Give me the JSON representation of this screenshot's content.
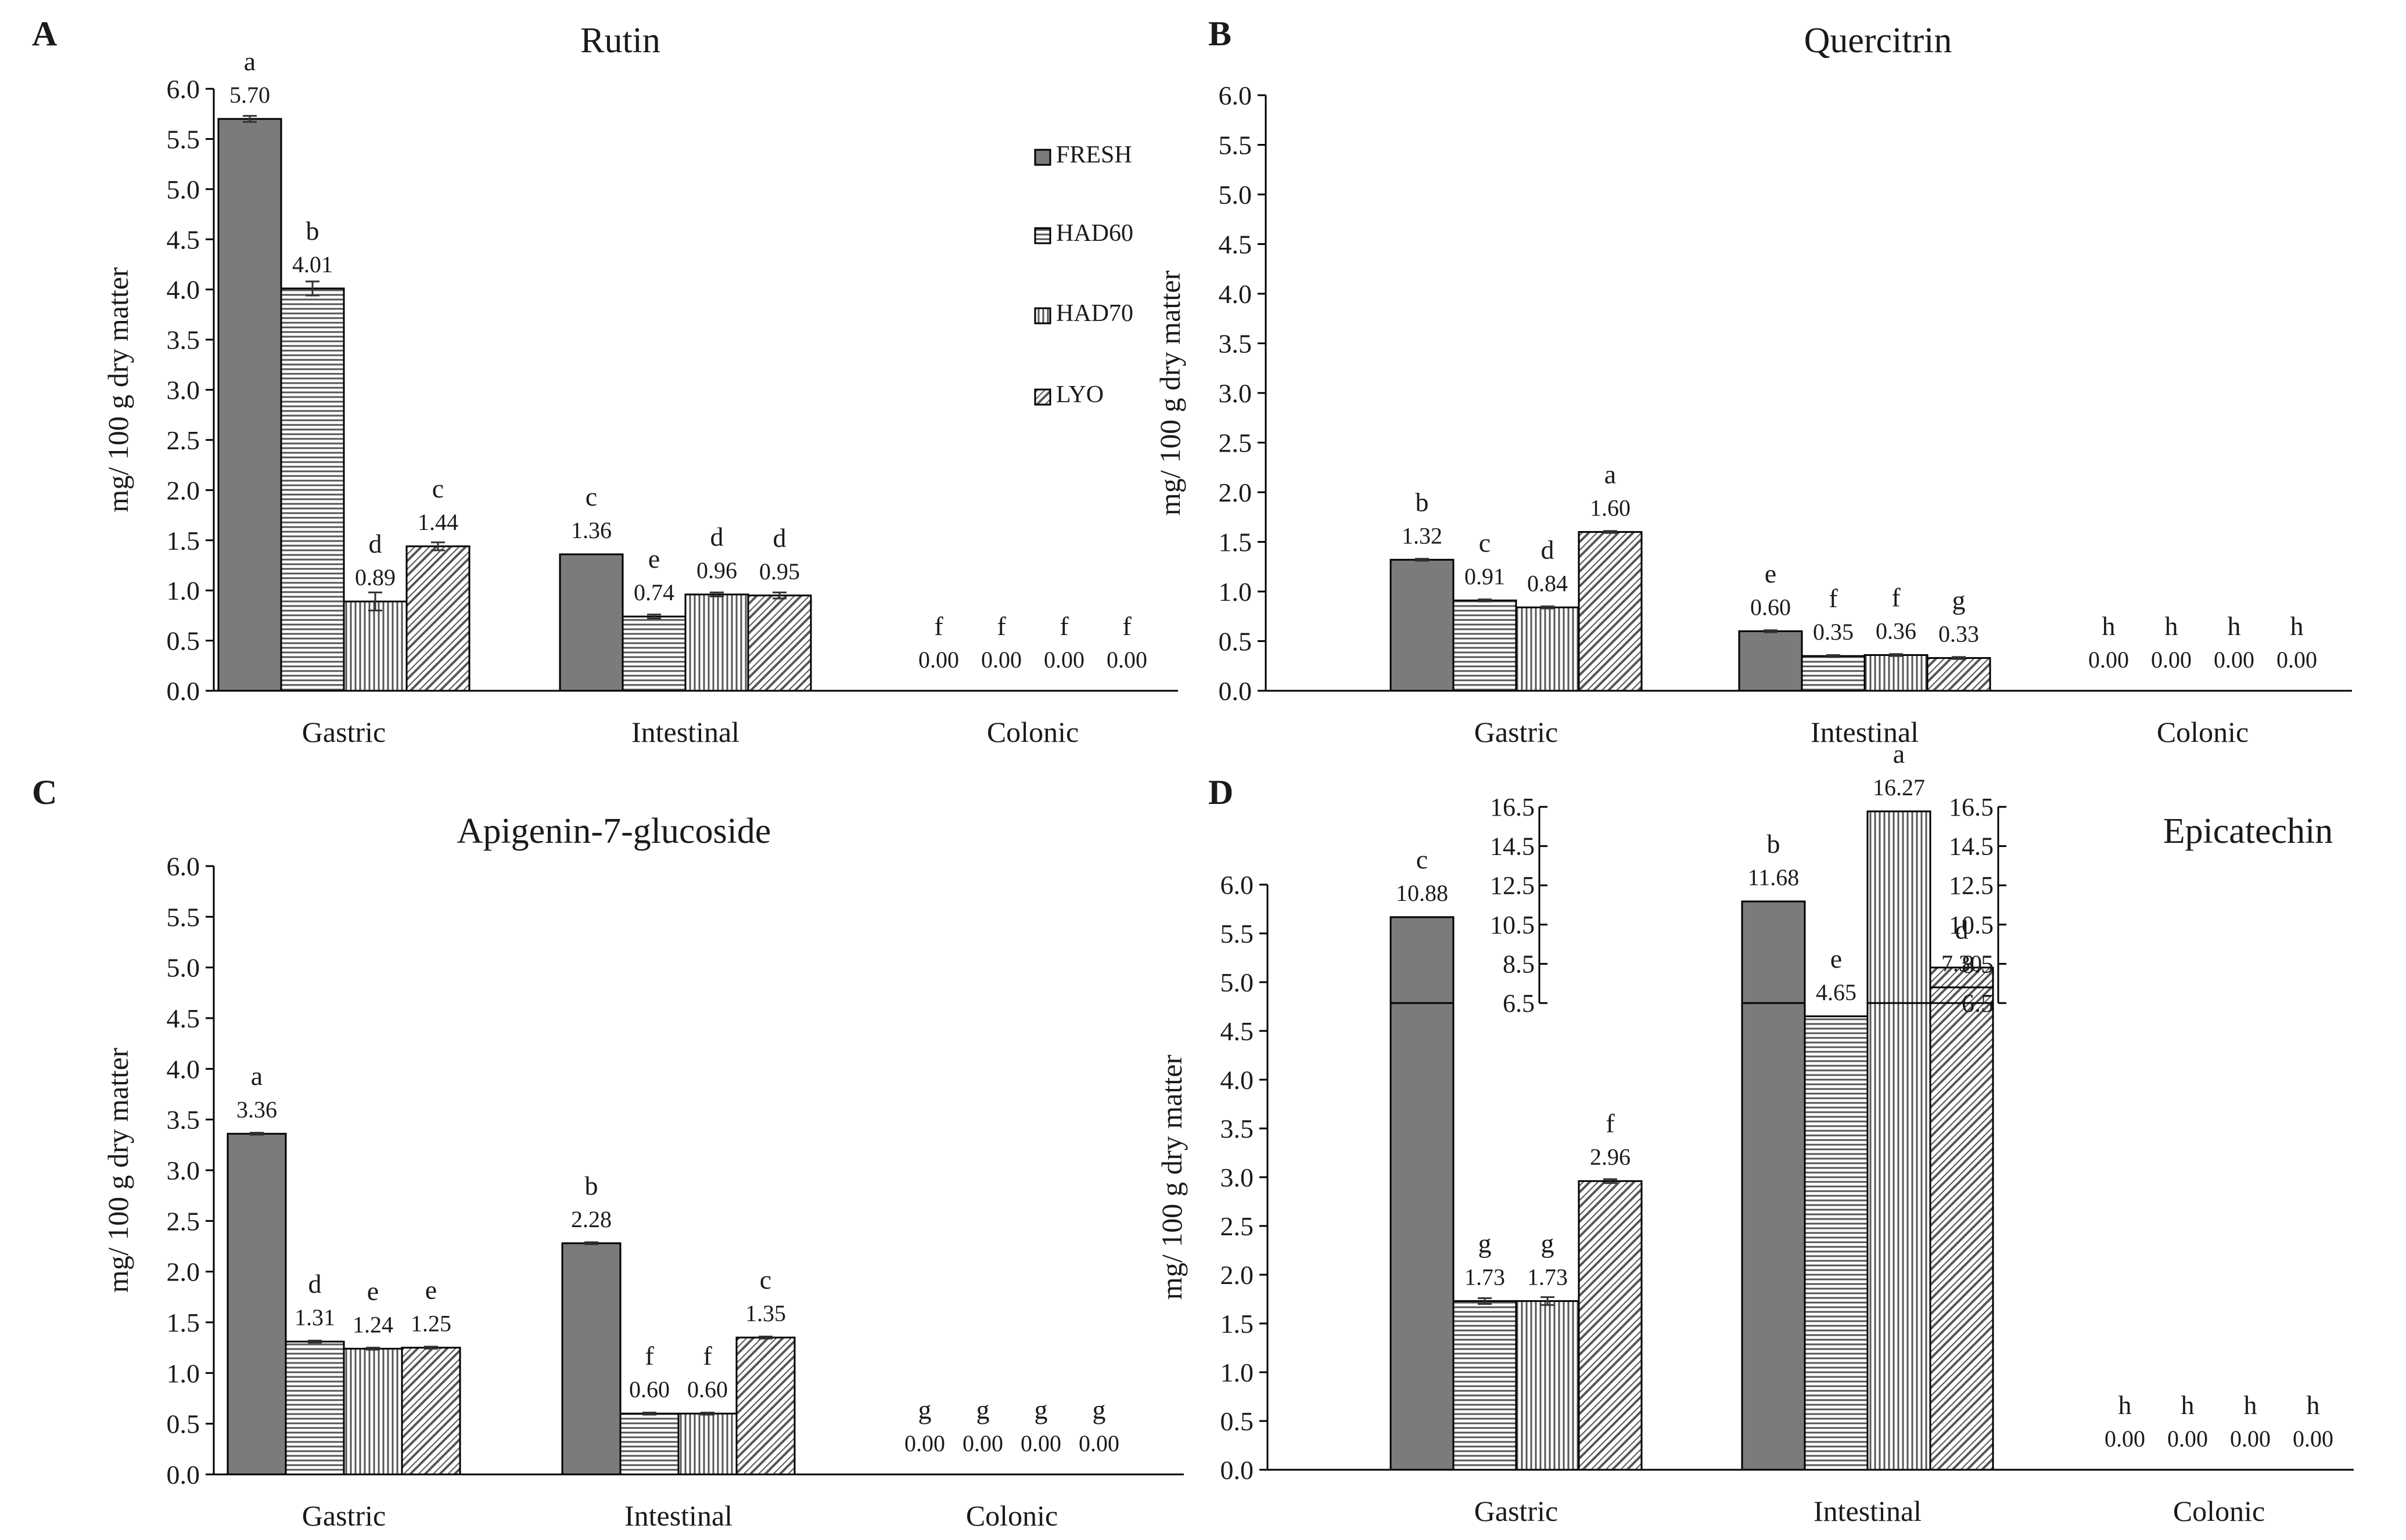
{
  "figure": {
    "legend": [
      {
        "key": "FRESH",
        "label": "FRESH",
        "pattern": "solid"
      },
      {
        "key": "HAD60",
        "label": "HAD60",
        "pattern": "hlines"
      },
      {
        "key": "HAD70",
        "label": "HAD70",
        "pattern": "vlines"
      },
      {
        "key": "LYO",
        "label": "LYO",
        "pattern": "diag"
      }
    ],
    "colors": {
      "fresh_fill": "#7b7b7b",
      "stroke": "#000000",
      "text": "#1a1a1a",
      "hatch": "#555555"
    }
  },
  "chart_data": [
    {
      "id": "A",
      "panel_label": "A",
      "type": "bar",
      "title": "Rutin",
      "ylabel": "mg/ 100 g dry matter",
      "xlabel": "",
      "ylim": [
        0,
        6.0
      ],
      "yticks": [
        "0.0",
        "0.5",
        "1.0",
        "1.5",
        "2.0",
        "2.5",
        "3.0",
        "3.5",
        "4.0",
        "4.5",
        "5.0",
        "5.5",
        "6.0"
      ],
      "categories": [
        "Gastric",
        "Intestinal",
        "Colonic"
      ],
      "series": [
        {
          "name": "FRESH",
          "values": [
            5.7,
            1.36,
            0.0
          ],
          "labels": [
            "5.70",
            "1.36",
            "0.00"
          ],
          "letters": [
            "a",
            "c",
            "f"
          ],
          "errors": [
            0.03,
            0.0,
            0.0
          ]
        },
        {
          "name": "HAD60",
          "values": [
            4.01,
            0.74,
            0.0
          ],
          "labels": [
            "4.01",
            "0.74",
            "0.00"
          ],
          "letters": [
            "b",
            "e",
            "f"
          ],
          "errors": [
            0.07,
            0.02,
            0.0
          ]
        },
        {
          "name": "HAD70",
          "values": [
            0.89,
            0.96,
            0.0
          ],
          "labels": [
            "0.89",
            "0.96",
            "0.00"
          ],
          "letters": [
            "d",
            "d",
            "f"
          ],
          "errors": [
            0.09,
            0.02,
            0.0
          ]
        },
        {
          "name": "LYO",
          "values": [
            1.44,
            0.95,
            0.0
          ],
          "labels": [
            "1.44",
            "0.95",
            "0.00"
          ],
          "letters": [
            "c",
            "d",
            "f"
          ],
          "errors": [
            0.04,
            0.03,
            0.0
          ]
        }
      ],
      "legend": "top-right"
    },
    {
      "id": "B",
      "panel_label": "B",
      "type": "bar",
      "title": "Quercitrin",
      "ylabel": "mg/ 100 g dry matter",
      "xlabel": "",
      "ylim": [
        0,
        6.0
      ],
      "yticks": [
        "0.0",
        "0.5",
        "1.0",
        "1.5",
        "2.0",
        "2.5",
        "3.0",
        "3.5",
        "4.0",
        "4.5",
        "5.0",
        "5.5",
        "6.0"
      ],
      "categories": [
        "Gastric",
        "Intestinal",
        "Colonic"
      ],
      "series": [
        {
          "name": "FRESH",
          "values": [
            1.32,
            0.6,
            0.0
          ],
          "labels": [
            "1.32",
            "0.60",
            "0.00"
          ],
          "letters": [
            "b",
            "e",
            "h"
          ],
          "errors": [
            0.01,
            0.01,
            0.0
          ]
        },
        {
          "name": "HAD60",
          "values": [
            0.91,
            0.35,
            0.0
          ],
          "labels": [
            "0.91",
            "0.35",
            "0.00"
          ],
          "letters": [
            "c",
            "f",
            "h"
          ],
          "errors": [
            0.01,
            0.01,
            0.0
          ]
        },
        {
          "name": "HAD70",
          "values": [
            0.84,
            0.36,
            0.0
          ],
          "labels": [
            "0.84",
            "0.36",
            "0.00"
          ],
          "letters": [
            "d",
            "f",
            "h"
          ],
          "errors": [
            0.01,
            0.01,
            0.0
          ]
        },
        {
          "name": "LYO",
          "values": [
            1.6,
            0.33,
            0.0
          ],
          "labels": [
            "1.60",
            "0.33",
            "0.00"
          ],
          "letters": [
            "a",
            "g",
            "h"
          ],
          "errors": [
            0.01,
            0.01,
            0.0
          ]
        }
      ]
    },
    {
      "id": "C",
      "panel_label": "C",
      "type": "bar",
      "title": "Apigenin-7-glucoside",
      "ylabel": "mg/ 100 g dry matter",
      "xlabel": "",
      "ylim": [
        0,
        6.0
      ],
      "yticks": [
        "0.0",
        "0.5",
        "1.0",
        "1.5",
        "2.0",
        "2.5",
        "3.0",
        "3.5",
        "4.0",
        "4.5",
        "5.0",
        "5.5",
        "6.0"
      ],
      "categories": [
        "Gastric",
        "Intestinal",
        "Colonic"
      ],
      "series": [
        {
          "name": "FRESH",
          "values": [
            3.36,
            2.28,
            0.0
          ],
          "labels": [
            "3.36",
            "2.28",
            "0.00"
          ],
          "letters": [
            "a",
            "b",
            "g"
          ],
          "errors": [
            0.01,
            0.01,
            0.0
          ]
        },
        {
          "name": "HAD60",
          "values": [
            1.31,
            0.6,
            0.0
          ],
          "labels": [
            "1.31",
            "0.60",
            "0.00"
          ],
          "letters": [
            "d",
            "f",
            "g"
          ],
          "errors": [
            0.01,
            0.01,
            0.0
          ]
        },
        {
          "name": "HAD70",
          "values": [
            1.24,
            0.6,
            0.0
          ],
          "labels": [
            "1.24",
            "0.60",
            "0.00"
          ],
          "letters": [
            "e",
            "f",
            "g"
          ],
          "errors": [
            0.01,
            0.01,
            0.0
          ]
        },
        {
          "name": "LYO",
          "values": [
            1.25,
            1.35,
            0.0
          ],
          "labels": [
            "1.25",
            "1.35",
            "0.00"
          ],
          "letters": [
            "e",
            "c",
            "g"
          ],
          "errors": [
            0.01,
            0.01,
            0.0
          ]
        }
      ]
    },
    {
      "id": "D",
      "panel_label": "D",
      "type": "bar",
      "title": "Epicatechin",
      "ylabel": "mg/ 100 g dry matter",
      "xlabel": "",
      "ylim": [
        0,
        6.0
      ],
      "yticks": [
        "0.0",
        "0.5",
        "1.0",
        "1.5",
        "2.0",
        "2.5",
        "3.0",
        "3.5",
        "4.0",
        "4.5",
        "5.0",
        "5.5",
        "6.0"
      ],
      "axis_break": {
        "lower_max": 5.15,
        "upper_range": [
          6.5,
          16.5
        ],
        "upper_ticks": [
          "6.5",
          "8.5",
          "10.5",
          "12.5",
          "14.5",
          "16.5"
        ]
      },
      "categories": [
        "Gastric",
        "Intestinal",
        "Colonic"
      ],
      "series": [
        {
          "name": "FRESH",
          "values": [
            10.88,
            11.68,
            0.0
          ],
          "labels": [
            "10.88",
            "11.68",
            "0.00"
          ],
          "letters": [
            "c",
            "b",
            "h"
          ],
          "errors": [
            0.15,
            0.0,
            0.0
          ]
        },
        {
          "name": "HAD60",
          "values": [
            1.73,
            4.65,
            0.0
          ],
          "labels": [
            "1.73",
            "4.65",
            "0.00"
          ],
          "letters": [
            "g",
            "e",
            "h"
          ],
          "errors": [
            0.03,
            0.0,
            0.0
          ]
        },
        {
          "name": "HAD70",
          "values": [
            1.73,
            16.27,
            0.0
          ],
          "labels": [
            "1.73",
            "16.27",
            "0.00"
          ],
          "letters": [
            "g",
            "a",
            "h"
          ],
          "errors": [
            0.04,
            0.0,
            0.0
          ]
        },
        {
          "name": "LYO",
          "values": [
            2.96,
            7.3,
            0.0
          ],
          "labels": [
            "2.96",
            "7.30",
            "0.00"
          ],
          "letters": [
            "f",
            "d",
            "h"
          ],
          "errors": [
            0.02,
            0.0,
            0.0
          ]
        }
      ]
    }
  ]
}
